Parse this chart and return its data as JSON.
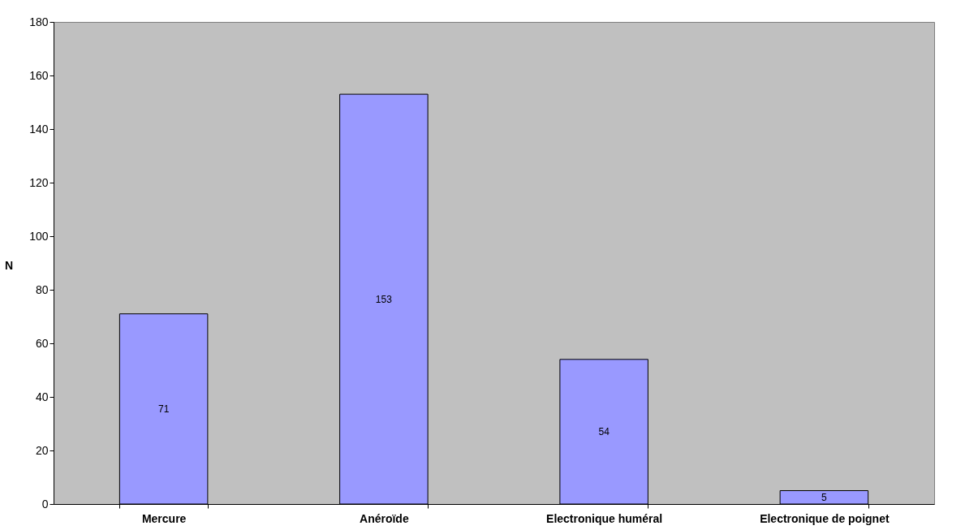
{
  "chart_data": {
    "type": "bar",
    "ylabel": "N",
    "categories": [
      "Mercure",
      "Anéroïde",
      "Electronique huméral",
      "Electronique de poignet"
    ],
    "values": [
      71,
      153,
      54,
      5
    ],
    "color": "#9999ff",
    "ylim": [
      0,
      180
    ],
    "yticks": [
      0,
      20,
      40,
      60,
      80,
      100,
      120,
      140,
      160,
      180
    ],
    "grid": false,
    "data_labels": true
  }
}
